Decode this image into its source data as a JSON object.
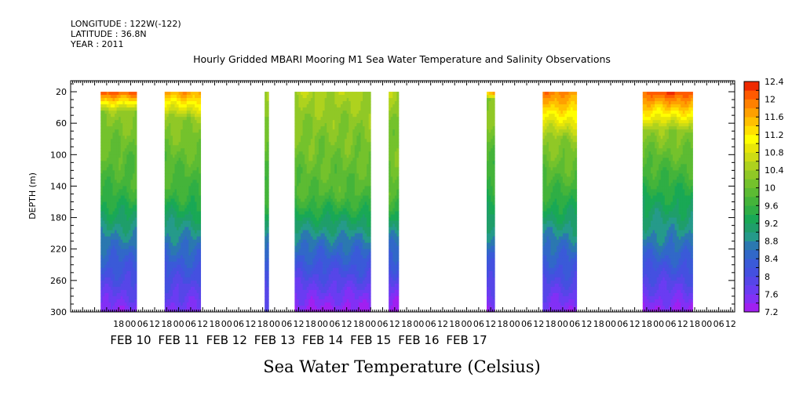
{
  "header": {
    "longitude": "LONGITUDE : 122W(-122)",
    "latitude": "LATITUDE : 36.8N",
    "year": "YEAR : 2011"
  },
  "chart_data": {
    "type": "heatmap",
    "title": "Hourly Gridded MBARI Mooring M1 Sea Water Temperature and Salinity Observations",
    "xlabel": "Sea Water Temperature (Celsius)",
    "ylabel": "DEPTH (m)",
    "x_unit": "hours from 2011-02-10 00:00",
    "xlim": [
      -30,
      302
    ],
    "ylim": [
      300,
      6
    ],
    "y_ticks": [
      20,
      60,
      100,
      140,
      180,
      220,
      260,
      300
    ],
    "hour_ticks": [
      {
        "h": -6,
        "label": "18"
      },
      {
        "h": 0,
        "label": "00"
      },
      {
        "h": 6,
        "label": "06"
      },
      {
        "h": 12,
        "label": "12"
      },
      {
        "h": 18,
        "label": "18"
      },
      {
        "h": 24,
        "label": "00"
      },
      {
        "h": 30,
        "label": "06"
      },
      {
        "h": 36,
        "label": "12"
      },
      {
        "h": 42,
        "label": "18"
      },
      {
        "h": 48,
        "label": "00"
      },
      {
        "h": 54,
        "label": "06"
      },
      {
        "h": 60,
        "label": "12"
      },
      {
        "h": 66,
        "label": "18"
      },
      {
        "h": 72,
        "label": "00"
      },
      {
        "h": 78,
        "label": "06"
      },
      {
        "h": 84,
        "label": "12"
      },
      {
        "h": 90,
        "label": "18"
      },
      {
        "h": 96,
        "label": "00"
      },
      {
        "h": 102,
        "label": "06"
      },
      {
        "h": 108,
        "label": "12"
      },
      {
        "h": 114,
        "label": "18"
      },
      {
        "h": 120,
        "label": "00"
      },
      {
        "h": 126,
        "label": "06"
      },
      {
        "h": 132,
        "label": "12"
      },
      {
        "h": 138,
        "label": "18"
      },
      {
        "h": 144,
        "label": "00"
      },
      {
        "h": 150,
        "label": "06"
      },
      {
        "h": 156,
        "label": "12"
      },
      {
        "h": 162,
        "label": "18"
      },
      {
        "h": 168,
        "label": "00"
      },
      {
        "h": 174,
        "label": "06"
      },
      {
        "h": 180,
        "label": "12"
      },
      {
        "h": 186,
        "label": "18"
      },
      {
        "h": 192,
        "label": "00"
      },
      {
        "h": 198,
        "label": "06"
      },
      {
        "h": 204,
        "label": "12"
      },
      {
        "h": 210,
        "label": "18"
      },
      {
        "h": 216,
        "label": "00"
      },
      {
        "h": 222,
        "label": "06"
      },
      {
        "h": 228,
        "label": "12"
      },
      {
        "h": 234,
        "label": "18"
      },
      {
        "h": 240,
        "label": "00"
      },
      {
        "h": 246,
        "label": "06"
      },
      {
        "h": 252,
        "label": "12"
      },
      {
        "h": 258,
        "label": "18"
      },
      {
        "h": 264,
        "label": "00"
      },
      {
        "h": 270,
        "label": "06"
      },
      {
        "h": 276,
        "label": "12"
      },
      {
        "h": 282,
        "label": "18"
      },
      {
        "h": 288,
        "label": "00"
      },
      {
        "h": 294,
        "label": "06"
      },
      {
        "h": 300,
        "label": "12"
      }
    ],
    "date_labels": [
      {
        "h": 0,
        "label": "FEB 10"
      },
      {
        "h": 24,
        "label": "FEB 11"
      },
      {
        "h": 48,
        "label": "FEB 12"
      },
      {
        "h": 72,
        "label": "FEB 13"
      },
      {
        "h": 96,
        "label": "FEB 14"
      },
      {
        "h": 120,
        "label": "FEB 15"
      },
      {
        "h": 144,
        "label": "FEB 16"
      },
      {
        "h": 168,
        "label": "FEB 17"
      }
    ],
    "data_blocks": [
      {
        "start": -15,
        "end": 3,
        "surface_temp": 12.2,
        "shallow_depth": 45,
        "mid_temp": 9.6,
        "bottom_temp": 7.45
      },
      {
        "start": 17,
        "end": 35,
        "surface_temp": 11.7,
        "shallow_depth": 55,
        "mid_temp": 9.6,
        "bottom_temp": 7.5
      },
      {
        "start": 67,
        "end": 69,
        "surface_temp": 10.7,
        "shallow_depth": 20,
        "mid_temp": 9.7,
        "bottom_temp": 7.7
      },
      {
        "start": 82,
        "end": 120,
        "surface_temp": 10.5,
        "shallow_depth": 50,
        "mid_temp": 9.8,
        "bottom_temp": 7.3
      },
      {
        "start": 129,
        "end": 134,
        "surface_temp": 10.5,
        "shallow_depth": 40,
        "mid_temp": 9.9,
        "bottom_temp": 7.2
      },
      {
        "start": 178,
        "end": 182,
        "surface_temp": 11.9,
        "shallow_depth": 30,
        "mid_temp": 9.5,
        "bottom_temp": 7.4
      },
      {
        "start": 206,
        "end": 223,
        "surface_temp": 11.9,
        "shallow_depth": 80,
        "mid_temp": 9.6,
        "bottom_temp": 7.45
      },
      {
        "start": 256,
        "end": 281,
        "surface_temp": 12.2,
        "shallow_depth": 70,
        "mid_temp": 9.4,
        "bottom_temp": 7.35
      }
    ],
    "colorbar": {
      "levels": [
        7.2,
        7.4,
        7.6,
        7.8,
        8.0,
        8.2,
        8.4,
        8.6,
        8.8,
        9.0,
        9.2,
        9.4,
        9.6,
        9.8,
        10.0,
        10.2,
        10.4,
        10.6,
        10.8,
        11.0,
        11.2,
        11.4,
        11.6,
        11.8,
        12.0,
        12.2,
        12.4
      ],
      "labels": [
        "7.2",
        "7.6",
        "8",
        "8.4",
        "8.8",
        "9.2",
        "9.6",
        "10",
        "10.4",
        "10.8",
        "11.2",
        "11.6",
        "12",
        "12.4"
      ],
      "colors": [
        "#a020f0",
        "#8230f5",
        "#6a3cf2",
        "#5646e8",
        "#4450e0",
        "#3a5ad8",
        "#3168c8",
        "#2b78b0",
        "#259a8a",
        "#1f9e6a",
        "#19a855",
        "#2fae45",
        "#44b43a",
        "#5cbb33",
        "#74c22c",
        "#90c826",
        "#aed21e",
        "#cddc14",
        "#e8e608",
        "#ffff00",
        "#ffe000",
        "#ffc000",
        "#ffa000",
        "#ff8000",
        "#ff5a00",
        "#ee2a00",
        "#a01010"
      ]
    },
    "grid": false
  }
}
